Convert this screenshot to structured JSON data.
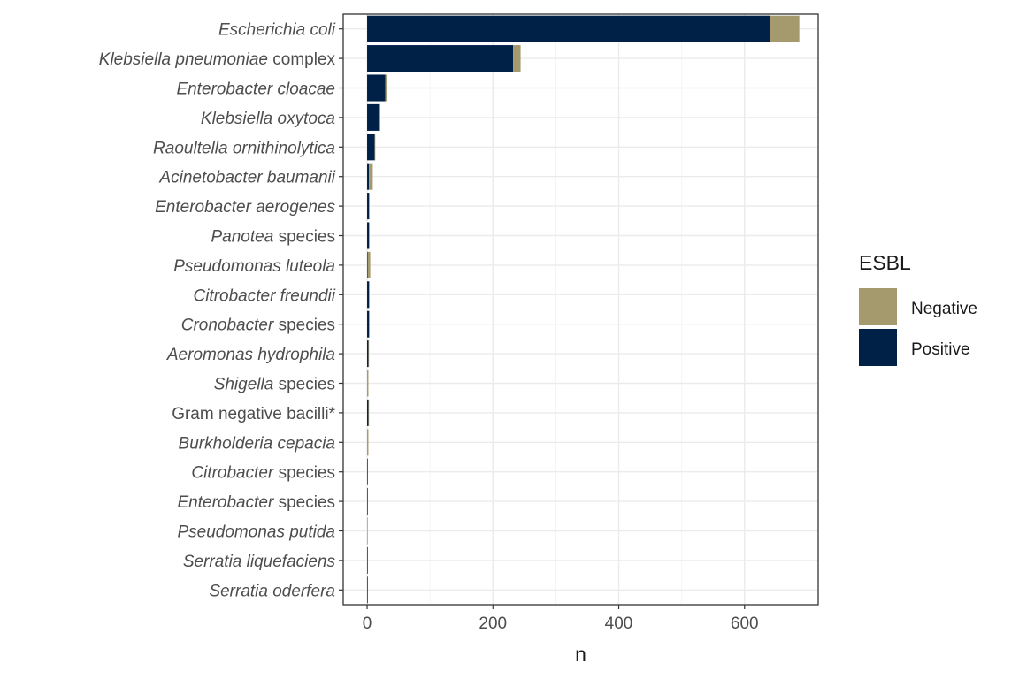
{
  "chart_data": {
    "type": "bar",
    "orientation": "horizontal",
    "stacked": true,
    "categories": [
      {
        "label": [
          {
            "text": "Escherichia coli",
            "italic": true
          }
        ]
      },
      {
        "label": [
          {
            "text": "Klebsiella pneumoniae",
            "italic": true
          },
          {
            "text": " complex",
            "italic": false
          }
        ]
      },
      {
        "label": [
          {
            "text": "Enterobacter cloacae",
            "italic": true
          }
        ]
      },
      {
        "label": [
          {
            "text": "Klebsiella oxytoca",
            "italic": true
          }
        ]
      },
      {
        "label": [
          {
            "text": "Raoultella ornithinolytica",
            "italic": true
          }
        ]
      },
      {
        "label": [
          {
            "text": "Acinetobacter baumanii",
            "italic": true
          }
        ]
      },
      {
        "label": [
          {
            "text": "Enterobacter aerogenes",
            "italic": true
          }
        ]
      },
      {
        "label": [
          {
            "text": "Panotea",
            "italic": true
          },
          {
            "text": " species",
            "italic": false
          }
        ]
      },
      {
        "label": [
          {
            "text": "Pseudomonas luteola",
            "italic": true
          }
        ]
      },
      {
        "label": [
          {
            "text": "Citrobacter freundii",
            "italic": true
          }
        ]
      },
      {
        "label": [
          {
            "text": "Cronobacter",
            "italic": true
          },
          {
            "text": " species",
            "italic": false
          }
        ]
      },
      {
        "label": [
          {
            "text": "Aeromonas hydrophila",
            "italic": true
          }
        ]
      },
      {
        "label": [
          {
            "text": "Shigella",
            "italic": true
          },
          {
            "text": " species",
            "italic": false
          }
        ]
      },
      {
        "label": [
          {
            "text": "Gram negative bacilli*",
            "italic": false
          }
        ]
      },
      {
        "label": [
          {
            "text": "Burkholderia cepacia",
            "italic": true
          }
        ]
      },
      {
        "label": [
          {
            "text": "Citrobacter",
            "italic": true
          },
          {
            "text": " species",
            "italic": false
          }
        ]
      },
      {
        "label": [
          {
            "text": "Enterobacter",
            "italic": true
          },
          {
            "text": " species",
            "italic": false
          }
        ]
      },
      {
        "label": [
          {
            "text": "Pseudomonas putida",
            "italic": true
          }
        ]
      },
      {
        "label": [
          {
            "text": "Serratia liquefaciens",
            "italic": true
          }
        ]
      },
      {
        "label": [
          {
            "text": "Serratia oderfera",
            "italic": true
          }
        ]
      }
    ],
    "series": [
      {
        "name": "Positive",
        "color": "#002147",
        "values": [
          641,
          232,
          29,
          20,
          12,
          3,
          3,
          3,
          1,
          3,
          3,
          2,
          0,
          2,
          0,
          1,
          1,
          0,
          1,
          1
        ]
      },
      {
        "name": "Negative",
        "color": "#a59a6e",
        "values": [
          46,
          12,
          3,
          1,
          1,
          6,
          1,
          1,
          4,
          1,
          1,
          1,
          2,
          1,
          2,
          0,
          0,
          1,
          0,
          0
        ]
      }
    ],
    "xlabel": "n",
    "ylabel": "",
    "xlim": [
      -38,
      717
    ],
    "xticks": [
      0,
      200,
      400,
      600
    ],
    "grid": true,
    "legend": {
      "title": "ESBL",
      "position": "right",
      "entries": [
        {
          "name": "Negative",
          "color": "#a59a6e"
        },
        {
          "name": "Positive",
          "color": "#002147"
        }
      ]
    }
  }
}
